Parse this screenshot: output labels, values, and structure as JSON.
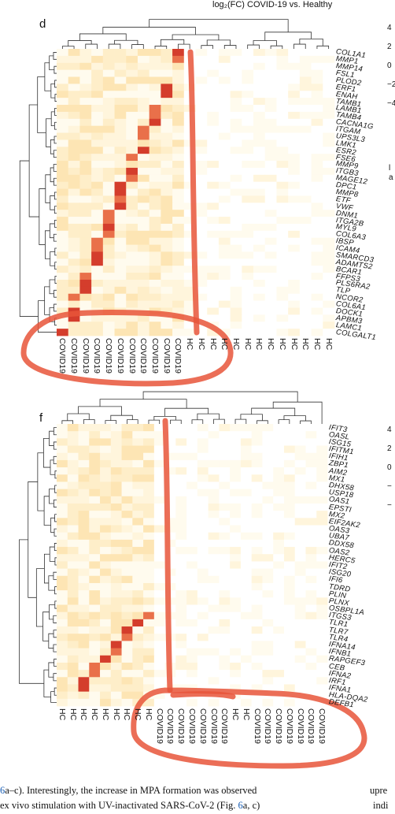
{
  "top_caption": "log₂(FC) COVID-19 vs. Healthy",
  "legend_ticks_top": [
    "4",
    "2",
    "0",
    "−2",
    "−4"
  ],
  "legend_ticks_bottom": [
    "4",
    "2",
    "0",
    "−",
    "−"
  ],
  "cut_text_top": "l",
  "cut_text_top2": "a",
  "caption": {
    "line1_ref": "6",
    "line1_text": "a–c). Interestingly, the increase in MPA formation was observed",
    "line1_right": "upre",
    "line2_text": "ex vivo stimulation with UV-inactivated SARS-CoV-2 (Fig. ",
    "line2_ref": "6",
    "line2_tail": "a, c)",
    "line2_right": "indi"
  },
  "chart_data": [
    {
      "panel": "d",
      "type": "heatmap",
      "title": "log₂(FC) COVID-19 vs. Healthy",
      "rows": [
        "COL1A1",
        "MMP1",
        "MMP14",
        "FSL1",
        "PLOD2",
        "ERF1",
        "ENAH",
        "TAMB1",
        "LAMB1",
        "TAMB4",
        "CACNA1G",
        "ITGAM",
        "UPS3L3",
        "LMK1",
        "ESR2",
        "FSE6",
        "MMP9",
        "ITGB3",
        "MAGE12",
        "DPC1",
        "MMP8",
        "ETF",
        "VWF",
        "DNM1",
        "ITGA2B",
        "MYL9",
        "COL6A3",
        "IBSP",
        "ICAM4",
        "SMARCD3",
        "ADAMTS2",
        "BCAR1",
        "FFPS3",
        "PLS6RA2",
        "TLP",
        "NCOR2",
        "COL6A1",
        "DOCK1",
        "APBM3",
        "LAMC1",
        "COLGALT1"
      ],
      "columns": [
        "COVID19",
        "COVID19",
        "COVID19",
        "COVID19",
        "COVID19",
        "COVID19",
        "COVID19",
        "COVID19",
        "COVID19",
        "COVID19",
        "COVID19",
        "HC",
        "HC",
        "HC",
        "HC",
        "HC",
        "HC",
        "HC",
        "HC",
        "HC",
        "HC",
        "HC",
        "HC",
        "HC"
      ],
      "scale": [
        -4,
        4
      ]
    },
    {
      "panel": "f",
      "type": "heatmap",
      "rows": [
        "IFIT3",
        "OASL",
        "ISG15",
        "IFITM1",
        "IFIH1",
        "ZBP1",
        "AIM2",
        "MX1",
        "DHX58",
        "USP18",
        "OAS1",
        "EPSTI",
        "MX2",
        "EIF2AK2",
        "OAS3",
        "UBA7",
        "DDX58",
        "OAS2",
        "HERC5",
        "IFIT2",
        "ISG20",
        "IFI6",
        "TDRD",
        "PLIN",
        "PLNX",
        "OSBPL1A",
        "ITGS3",
        "TLR1",
        "TLR7",
        "TLR4",
        "IFNA14",
        "IFNB1",
        "RAPGEF3",
        "CEB",
        "IFNA2",
        "IRF1",
        "IFNA1",
        "HLA-DQA2",
        "DEFB1"
      ],
      "columns": [
        "HC",
        "HC",
        "HC",
        "HC",
        "HC",
        "HC",
        "HC",
        "HC",
        "HC",
        "COVID19",
        "COVID19",
        "COVID19",
        "COVID19",
        "COVID19",
        "COVID19",
        "COVID19",
        "HC",
        "HC",
        "COVID19",
        "COVID19",
        "COVID19",
        "COVID19",
        "COVID19",
        "COVID19",
        "COVID19"
      ],
      "scale": [
        -4,
        4
      ]
    }
  ]
}
